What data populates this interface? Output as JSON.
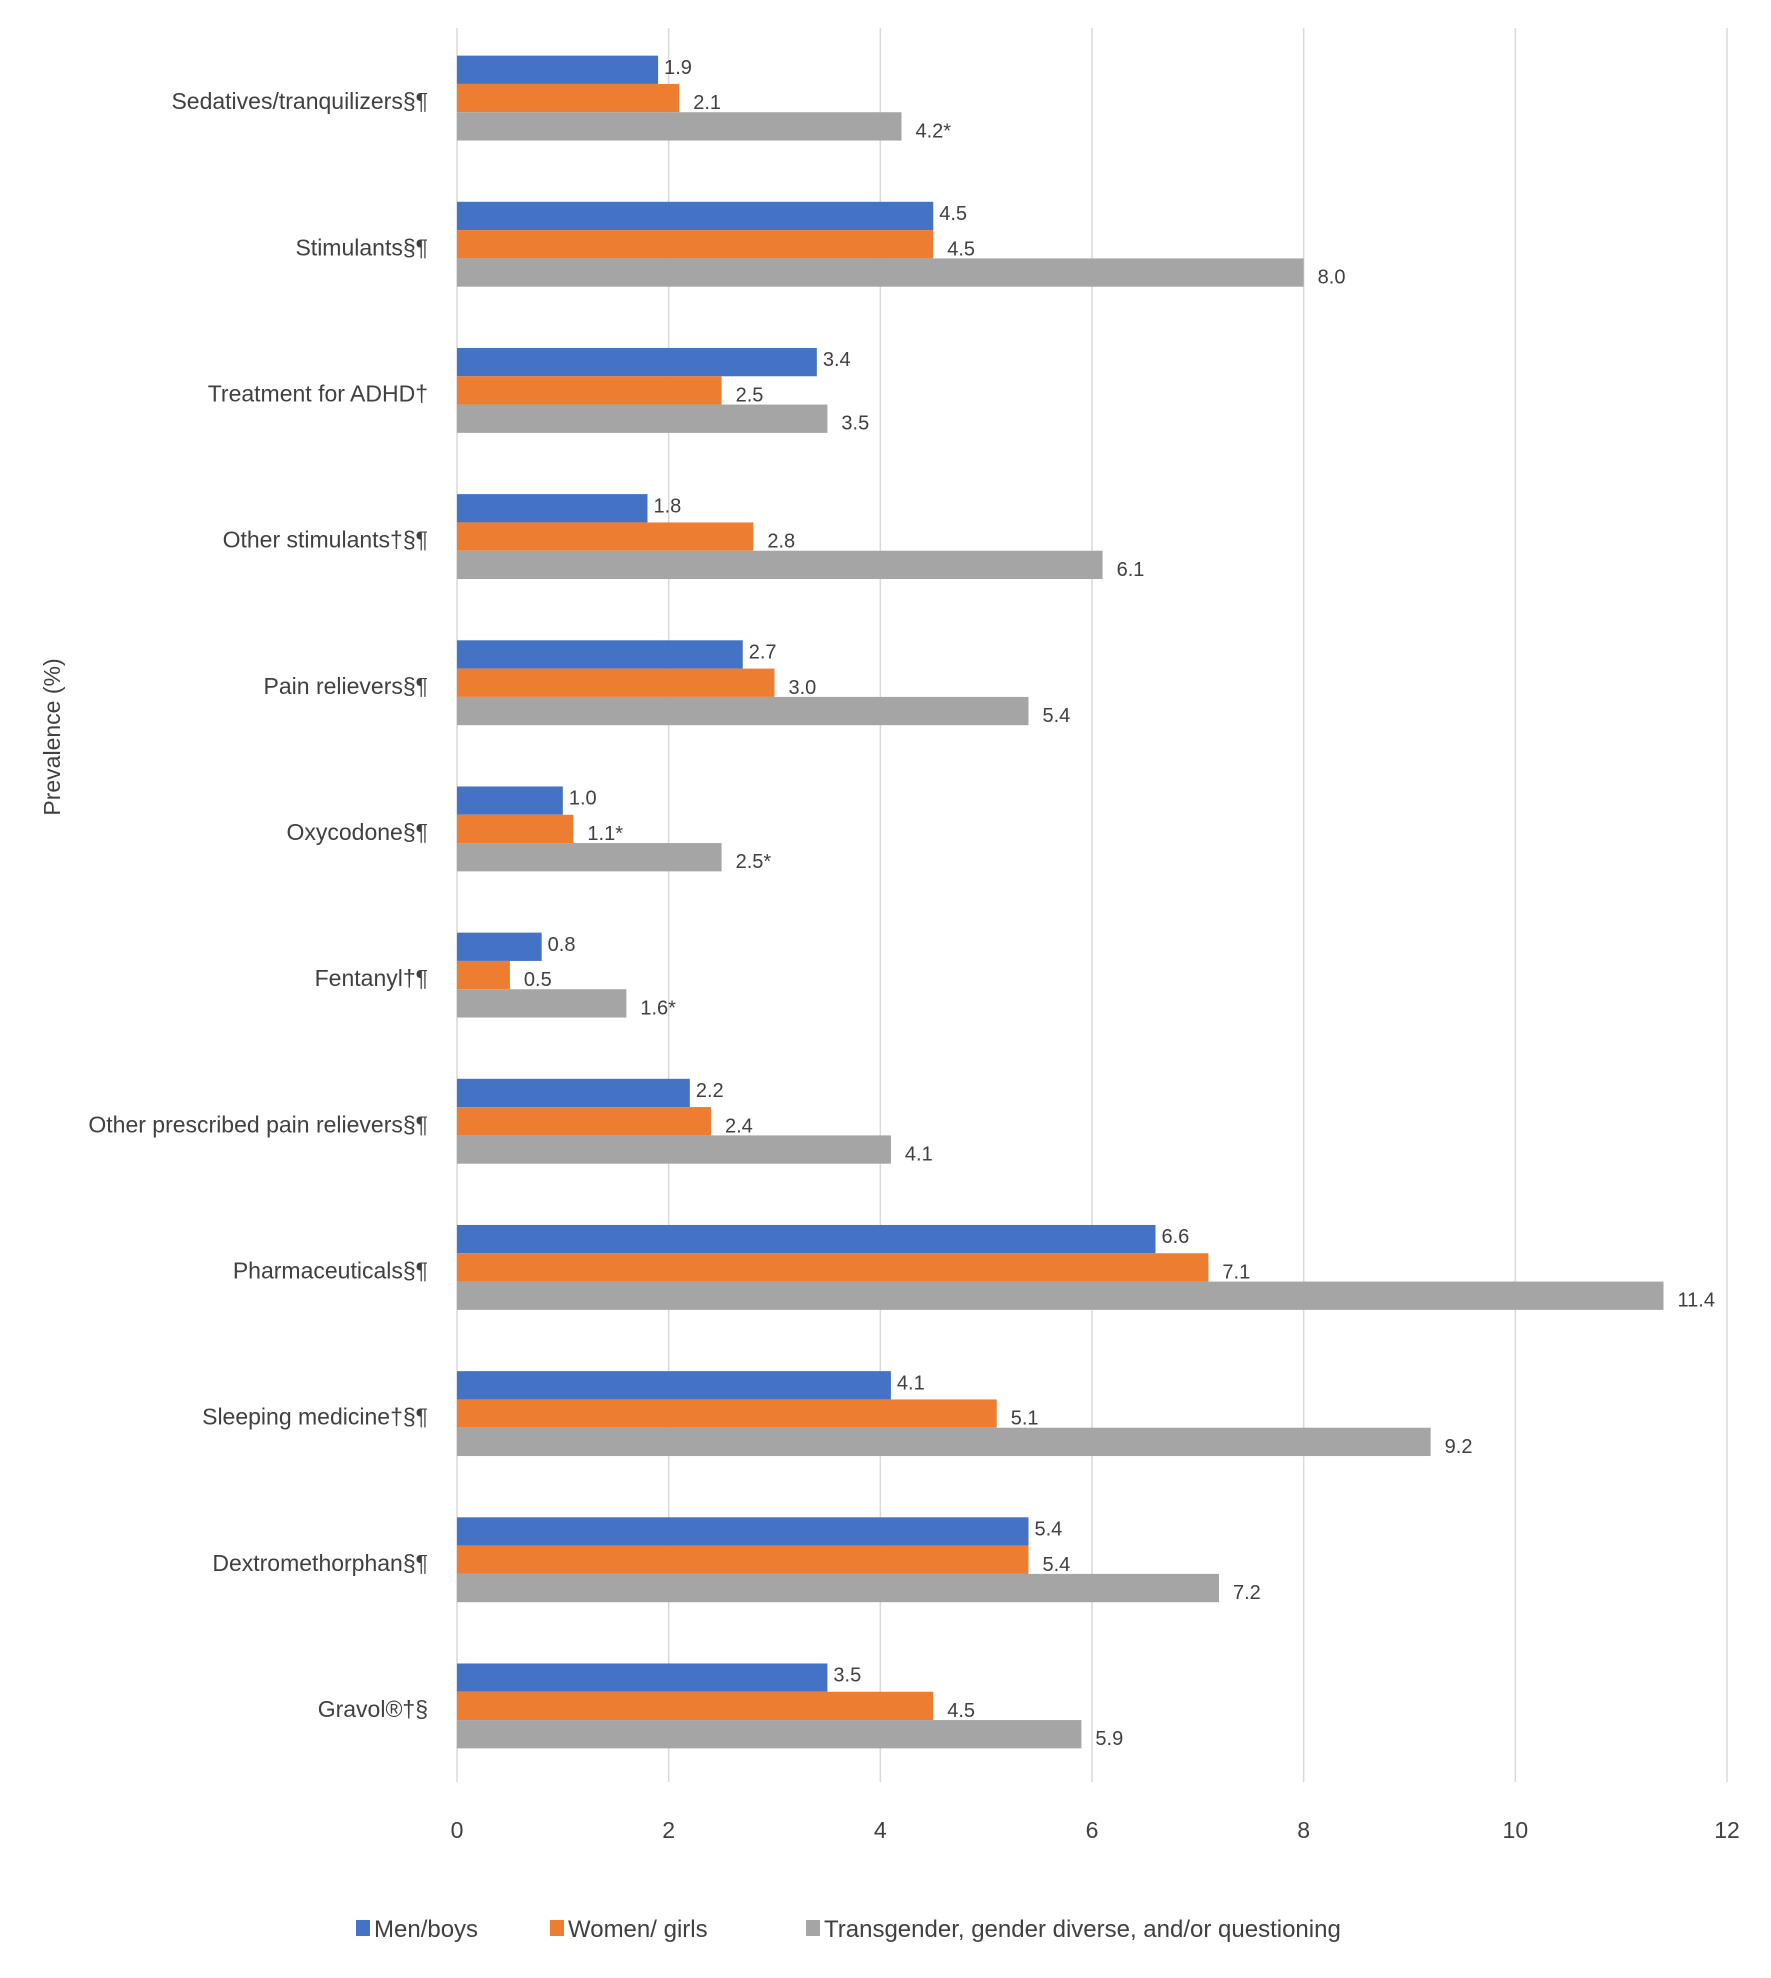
{
  "chart_data": {
    "type": "bar",
    "orientation": "horizontal",
    "title": "",
    "xlabel": "",
    "ylabel": "Prevalence (%)",
    "xlim": [
      0,
      12
    ],
    "xticks": [
      "0",
      "2",
      "4",
      "6",
      "8",
      "10",
      "12"
    ],
    "grid": true,
    "legend_position": "bottom",
    "categories": [
      "Sedatives/tranquilizers§¶",
      "Stimulants§¶",
      "Treatment for ADHD†",
      "Other stimulants†§¶",
      "Pain relievers§¶",
      "Oxycodone§¶",
      "Fentanyl†¶",
      "Other prescribed pain relievers§¶",
      "Pharmaceuticals§¶",
      "Sleeping medicine†§¶",
      "Dextromethorphan§¶",
      "Gravol®†§"
    ],
    "series": [
      {
        "name": "Men/boys",
        "color": "#4472C4",
        "values": [
          1.9,
          4.5,
          3.4,
          1.8,
          2.7,
          1.0,
          0.8,
          2.2,
          6.6,
          4.1,
          5.4,
          3.5
        ],
        "labels": [
          "1.9",
          "4.5",
          "3.4",
          "1.8",
          "2.7",
          "1.0",
          "0.8",
          "2.2",
          "6.6",
          "4.1",
          "5.4",
          "3.5"
        ]
      },
      {
        "name": "Women/ girls",
        "color": "#ED7D31",
        "values": [
          2.1,
          4.5,
          2.5,
          2.8,
          3.0,
          1.1,
          0.5,
          2.4,
          7.1,
          5.1,
          5.4,
          4.5
        ],
        "labels": [
          "2.1",
          "4.5",
          "2.5",
          "2.8",
          "3.0",
          "1.1*",
          "0.5",
          "2.4",
          "7.1",
          "5.1",
          "5.4",
          "4.5"
        ]
      },
      {
        "name": "Transgender, gender diverse, and/or questioning",
        "color": "#A5A5A5",
        "values": [
          4.2,
          8.0,
          3.5,
          6.1,
          5.4,
          2.5,
          1.6,
          4.1,
          11.4,
          9.2,
          7.2,
          5.9
        ],
        "labels": [
          "4.2*",
          "8.0",
          "3.5",
          "6.1",
          "5.4",
          "2.5*",
          "1.6*",
          "4.1",
          "11.4",
          "9.2",
          "7.2",
          "5.9"
        ]
      }
    ]
  }
}
